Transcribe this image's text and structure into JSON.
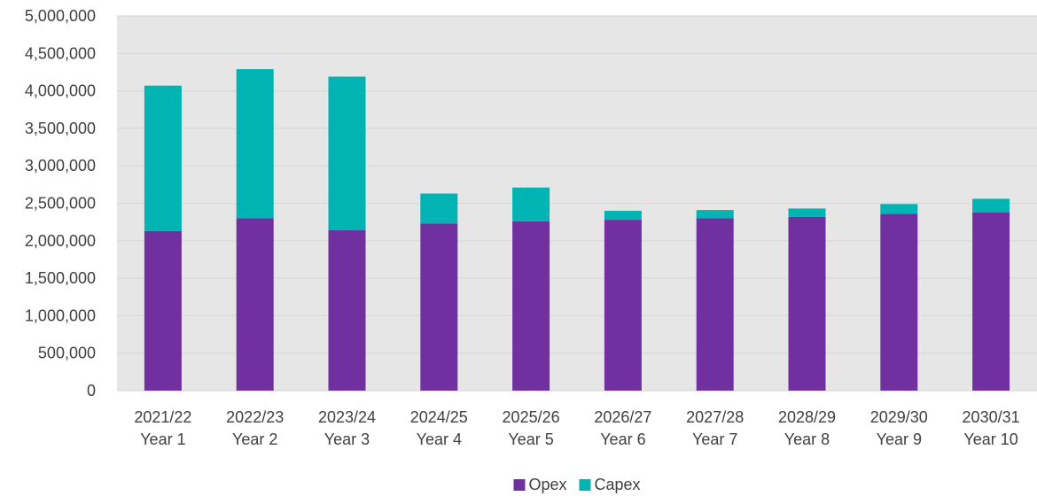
{
  "chart_data": {
    "type": "bar",
    "stacked": true,
    "categories": [
      [
        "2021/22",
        "Year 1"
      ],
      [
        "2022/23",
        "Year 2"
      ],
      [
        "2023/24",
        "Year 3"
      ],
      [
        "2024/25",
        "Year 4"
      ],
      [
        "2025/26",
        "Year 5"
      ],
      [
        "2026/27",
        "Year 6"
      ],
      [
        "2027/28",
        "Year 7"
      ],
      [
        "2028/29",
        "Year 8"
      ],
      [
        "2029/30",
        "Year 9"
      ],
      [
        "2030/31",
        "Year 10"
      ]
    ],
    "series": [
      {
        "name": "Opex",
        "color": "#7030A0",
        "values": [
          2130000,
          2300000,
          2140000,
          2230000,
          2260000,
          2280000,
          2300000,
          2320000,
          2360000,
          2380000
        ]
      },
      {
        "name": "Capex",
        "color": "#00B4B4",
        "values": [
          1940000,
          1990000,
          2050000,
          400000,
          450000,
          120000,
          110000,
          110000,
          130000,
          180000
        ]
      }
    ],
    "ylim": [
      0,
      5000000
    ],
    "yticks": [
      0,
      500000,
      1000000,
      1500000,
      2000000,
      2500000,
      3000000,
      3500000,
      4000000,
      4500000,
      5000000
    ],
    "ytick_labels": [
      "0",
      "500,000",
      "1,000,000",
      "1,500,000",
      "2,000,000",
      "2,500,000",
      "3,000,000",
      "3,500,000",
      "4,000,000",
      "4,500,000",
      "5,000,000"
    ],
    "grid": true,
    "legend_position": "bottom-center",
    "plot_background": "#E7E6E6",
    "gridline_color": "#D9D9D9",
    "title": "",
    "xlabel": "",
    "ylabel": ""
  }
}
